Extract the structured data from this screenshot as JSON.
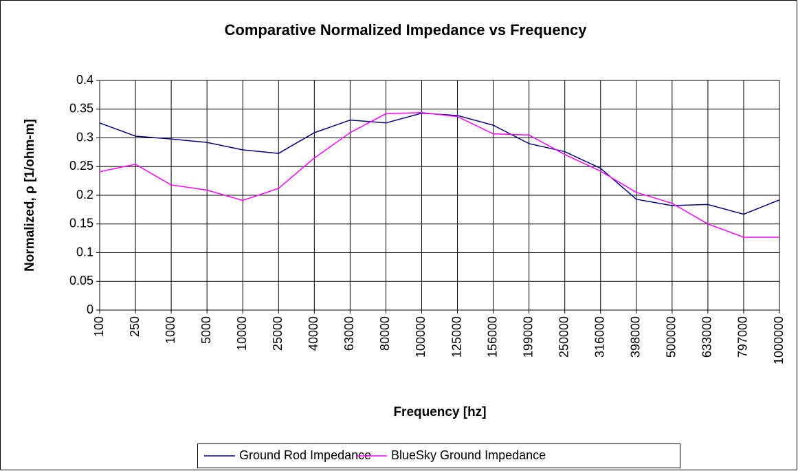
{
  "chart_data": {
    "type": "line",
    "title": "Comparative Normalized Impedance vs Frequency",
    "x_label": "Frequency [hz]",
    "y_label": "Normalized, ρ [1/ohm-m]",
    "categories": [
      "100",
      "250",
      "1000",
      "5000",
      "10000",
      "25000",
      "40000",
      "63000",
      "80000",
      "100000",
      "125000",
      "156000",
      "199000",
      "250000",
      "316000",
      "398000",
      "500000",
      "633000",
      "797000",
      "1000000"
    ],
    "series": [
      {
        "name": "Ground Rod Impedance",
        "color": "#000080",
        "values": [
          0.326,
          0.303,
          0.298,
          0.292,
          0.279,
          0.273,
          0.309,
          0.331,
          0.326,
          0.343,
          0.339,
          0.322,
          0.29,
          0.276,
          0.247,
          0.193,
          0.182,
          0.184,
          0.167,
          0.192
        ]
      },
      {
        "name": "BlueSky Ground Impedance",
        "color": "#ff00ff",
        "values": [
          0.241,
          0.254,
          0.218,
          0.209,
          0.191,
          0.212,
          0.265,
          0.309,
          0.342,
          0.344,
          0.337,
          0.307,
          0.305,
          0.271,
          0.242,
          0.205,
          0.186,
          0.15,
          0.127,
          0.127
        ]
      }
    ],
    "ylim": [
      0,
      0.4
    ],
    "yticks": [
      0,
      0.05,
      0.1,
      0.15,
      0.2,
      0.25,
      0.3,
      0.35,
      0.4
    ],
    "grid": true,
    "legend": "bottom"
  }
}
